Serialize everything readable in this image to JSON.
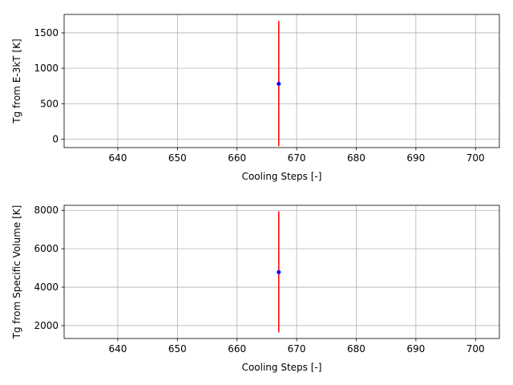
{
  "chart_data": [
    {
      "type": "scatter",
      "title": "",
      "xlabel": "Cooling Steps [-]",
      "ylabel": "Tg from E-3kT [K]",
      "xlim": [
        631,
        704
      ],
      "ylim": [
        -120,
        1760
      ],
      "xticks": [
        640,
        650,
        660,
        670,
        680,
        690,
        700
      ],
      "yticks": [
        0,
        500,
        1000,
        1500
      ],
      "grid": true,
      "point_color": "#0000ff",
      "errorbar_color": "#ff0000",
      "points": [
        {
          "x": 667,
          "y": 780,
          "yerr_low": -100,
          "yerr_high": 1670
        }
      ]
    },
    {
      "type": "scatter",
      "title": "",
      "xlabel": "Cooling Steps [-]",
      "ylabel": "Tg from Specific Volume [K]",
      "xlim": [
        631,
        704
      ],
      "ylim": [
        1330,
        8260
      ],
      "xticks": [
        640,
        650,
        660,
        670,
        680,
        690,
        700
      ],
      "yticks": [
        2000,
        4000,
        6000,
        8000
      ],
      "grid": true,
      "point_color": "#0000ff",
      "errorbar_color": "#ff0000",
      "points": [
        {
          "x": 667,
          "y": 4780,
          "yerr_low": 1650,
          "yerr_high": 7950
        }
      ]
    }
  ]
}
